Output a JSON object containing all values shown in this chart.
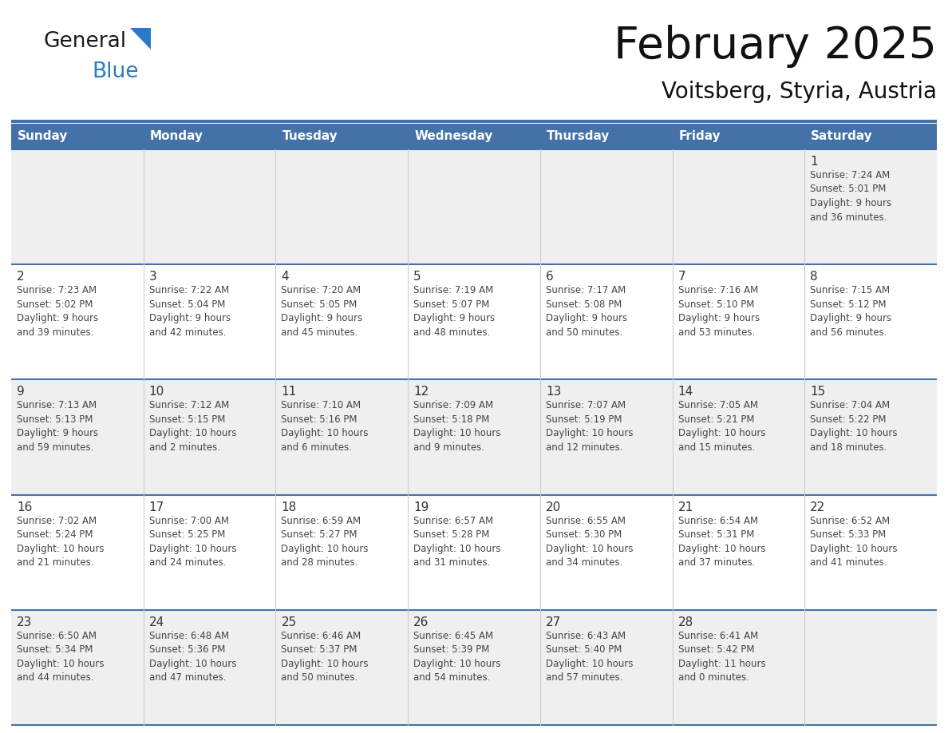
{
  "title": "February 2025",
  "subtitle": "Voitsberg, Styria, Austria",
  "header_color": "#4472A8",
  "header_text_color": "#FFFFFF",
  "days_of_week": [
    "Sunday",
    "Monday",
    "Tuesday",
    "Wednesday",
    "Thursday",
    "Friday",
    "Saturday"
  ],
  "bg_color": "#FFFFFF",
  "cell_bg_even": "#EFEFEF",
  "cell_bg_odd": "#FFFFFF",
  "border_color": "#4472A8",
  "text_color": "#444444",
  "day_num_color": "#333333",
  "logo_general_color": "#1A1A1A",
  "logo_blue_color": "#2A7AC7",
  "logo_triangle_color": "#2A7AC7",
  "weeks": [
    [
      {
        "day": null,
        "info": null
      },
      {
        "day": null,
        "info": null
      },
      {
        "day": null,
        "info": null
      },
      {
        "day": null,
        "info": null
      },
      {
        "day": null,
        "info": null
      },
      {
        "day": null,
        "info": null
      },
      {
        "day": 1,
        "info": "Sunrise: 7:24 AM\nSunset: 5:01 PM\nDaylight: 9 hours\nand 36 minutes."
      }
    ],
    [
      {
        "day": 2,
        "info": "Sunrise: 7:23 AM\nSunset: 5:02 PM\nDaylight: 9 hours\nand 39 minutes."
      },
      {
        "day": 3,
        "info": "Sunrise: 7:22 AM\nSunset: 5:04 PM\nDaylight: 9 hours\nand 42 minutes."
      },
      {
        "day": 4,
        "info": "Sunrise: 7:20 AM\nSunset: 5:05 PM\nDaylight: 9 hours\nand 45 minutes."
      },
      {
        "day": 5,
        "info": "Sunrise: 7:19 AM\nSunset: 5:07 PM\nDaylight: 9 hours\nand 48 minutes."
      },
      {
        "day": 6,
        "info": "Sunrise: 7:17 AM\nSunset: 5:08 PM\nDaylight: 9 hours\nand 50 minutes."
      },
      {
        "day": 7,
        "info": "Sunrise: 7:16 AM\nSunset: 5:10 PM\nDaylight: 9 hours\nand 53 minutes."
      },
      {
        "day": 8,
        "info": "Sunrise: 7:15 AM\nSunset: 5:12 PM\nDaylight: 9 hours\nand 56 minutes."
      }
    ],
    [
      {
        "day": 9,
        "info": "Sunrise: 7:13 AM\nSunset: 5:13 PM\nDaylight: 9 hours\nand 59 minutes."
      },
      {
        "day": 10,
        "info": "Sunrise: 7:12 AM\nSunset: 5:15 PM\nDaylight: 10 hours\nand 2 minutes."
      },
      {
        "day": 11,
        "info": "Sunrise: 7:10 AM\nSunset: 5:16 PM\nDaylight: 10 hours\nand 6 minutes."
      },
      {
        "day": 12,
        "info": "Sunrise: 7:09 AM\nSunset: 5:18 PM\nDaylight: 10 hours\nand 9 minutes."
      },
      {
        "day": 13,
        "info": "Sunrise: 7:07 AM\nSunset: 5:19 PM\nDaylight: 10 hours\nand 12 minutes."
      },
      {
        "day": 14,
        "info": "Sunrise: 7:05 AM\nSunset: 5:21 PM\nDaylight: 10 hours\nand 15 minutes."
      },
      {
        "day": 15,
        "info": "Sunrise: 7:04 AM\nSunset: 5:22 PM\nDaylight: 10 hours\nand 18 minutes."
      }
    ],
    [
      {
        "day": 16,
        "info": "Sunrise: 7:02 AM\nSunset: 5:24 PM\nDaylight: 10 hours\nand 21 minutes."
      },
      {
        "day": 17,
        "info": "Sunrise: 7:00 AM\nSunset: 5:25 PM\nDaylight: 10 hours\nand 24 minutes."
      },
      {
        "day": 18,
        "info": "Sunrise: 6:59 AM\nSunset: 5:27 PM\nDaylight: 10 hours\nand 28 minutes."
      },
      {
        "day": 19,
        "info": "Sunrise: 6:57 AM\nSunset: 5:28 PM\nDaylight: 10 hours\nand 31 minutes."
      },
      {
        "day": 20,
        "info": "Sunrise: 6:55 AM\nSunset: 5:30 PM\nDaylight: 10 hours\nand 34 minutes."
      },
      {
        "day": 21,
        "info": "Sunrise: 6:54 AM\nSunset: 5:31 PM\nDaylight: 10 hours\nand 37 minutes."
      },
      {
        "day": 22,
        "info": "Sunrise: 6:52 AM\nSunset: 5:33 PM\nDaylight: 10 hours\nand 41 minutes."
      }
    ],
    [
      {
        "day": 23,
        "info": "Sunrise: 6:50 AM\nSunset: 5:34 PM\nDaylight: 10 hours\nand 44 minutes."
      },
      {
        "day": 24,
        "info": "Sunrise: 6:48 AM\nSunset: 5:36 PM\nDaylight: 10 hours\nand 47 minutes."
      },
      {
        "day": 25,
        "info": "Sunrise: 6:46 AM\nSunset: 5:37 PM\nDaylight: 10 hours\nand 50 minutes."
      },
      {
        "day": 26,
        "info": "Sunrise: 6:45 AM\nSunset: 5:39 PM\nDaylight: 10 hours\nand 54 minutes."
      },
      {
        "day": 27,
        "info": "Sunrise: 6:43 AM\nSunset: 5:40 PM\nDaylight: 10 hours\nand 57 minutes."
      },
      {
        "day": 28,
        "info": "Sunrise: 6:41 AM\nSunset: 5:42 PM\nDaylight: 11 hours\nand 0 minutes."
      },
      {
        "day": null,
        "info": null
      }
    ]
  ]
}
